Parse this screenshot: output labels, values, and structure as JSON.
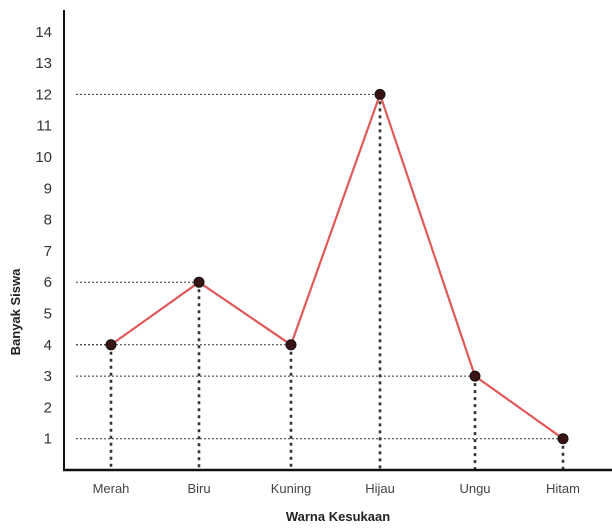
{
  "chart_data": {
    "type": "line",
    "title": "",
    "xlabel": "Warna Kesukaan",
    "ylabel": "Banyak Siswa",
    "categories": [
      "Merah",
      "Biru",
      "Kuning",
      "Hijau",
      "Ungu",
      "Hitam"
    ],
    "values": [
      4,
      6,
      4,
      12,
      3,
      1
    ],
    "yticks": [
      1,
      2,
      3,
      4,
      5,
      6,
      7,
      8,
      9,
      10,
      11,
      12,
      13,
      14
    ],
    "ylim": [
      0,
      14
    ],
    "grid": false,
    "line_color": "#e05a5a",
    "marker_color": "#3a1414",
    "guide_color": "#333333"
  }
}
